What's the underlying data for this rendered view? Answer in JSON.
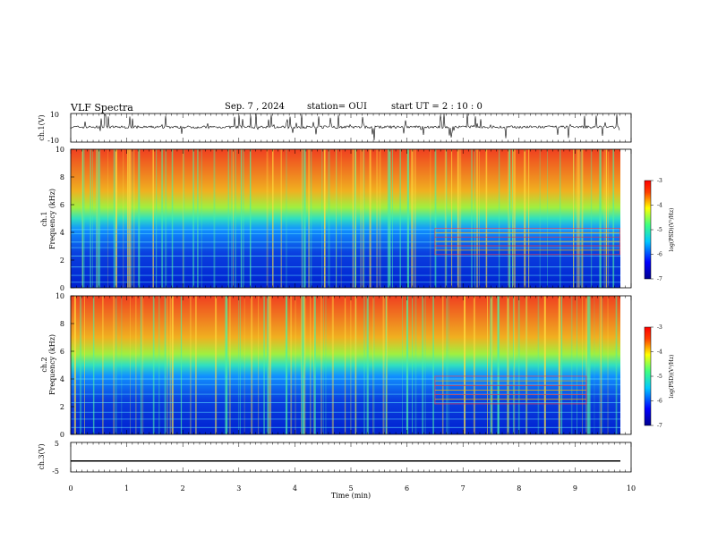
{
  "header": {
    "title": "VLF Spectra",
    "date": "Sep. 7 , 2024",
    "station": "station= OUI",
    "start_ut": "start  UT  =   2 : 10 : 0"
  },
  "chart_data": [
    {
      "type": "line",
      "name": "ch1-waveform",
      "ylabel": "ch.1(V)",
      "ylim": [
        -10,
        10
      ],
      "yticks": [
        "10",
        "-10"
      ],
      "baseline": 0.5,
      "note_values": "dense noisy waveform with frequent impulsive spikes reaching +10"
    },
    {
      "type": "heatmap",
      "name": "ch1-spectrogram",
      "ylabel": "ch.1\nFrequency  (kHz)",
      "ylim": [
        0,
        10
      ],
      "yticks": [
        "0",
        "2",
        "4",
        "6",
        "8",
        "10"
      ],
      "xlim": [
        0,
        10
      ],
      "band_edge_khz": 4.6,
      "lines_khz": [
        0.4,
        0.9,
        1.5,
        2.3,
        2.9,
        3.3,
        3.9,
        4.2
      ],
      "box": {
        "t0": 6.5,
        "t1": 9.8,
        "f0": 2.4,
        "f1": 4.3
      },
      "colorbar": {
        "label": "log(PSD)(V²/Hz)",
        "ticks": [
          "-3",
          "-4",
          "-5",
          "-6",
          "-7"
        ]
      }
    },
    {
      "type": "heatmap",
      "name": "ch2-spectrogram",
      "ylabel": "ch.2\nFrequency  (kHz)",
      "ylim": [
        0,
        10
      ],
      "yticks": [
        "0",
        "2",
        "4",
        "6",
        "8",
        "10"
      ],
      "xlim": [
        0,
        10
      ],
      "band_edge_khz": 4.3,
      "lines_khz": [
        0.5,
        1.1,
        1.6,
        2.3,
        2.9,
        3.6,
        4.0
      ],
      "box": {
        "t0": 6.5,
        "t1": 9.2,
        "f0": 2.2,
        "f1": 4.2
      },
      "colorbar": {
        "label": "log(PSD)(V²/Hz)",
        "ticks": [
          "-3",
          "-4",
          "-5",
          "-6",
          "-7"
        ]
      }
    },
    {
      "type": "line",
      "name": "ch3-waveform",
      "ylabel": "ch.3(V)",
      "ylim": [
        -5,
        5
      ],
      "yticks": [
        "5",
        "-5"
      ],
      "values_constant": -1.5,
      "xlabel": "Time  (min)",
      "xlim": [
        0,
        10
      ],
      "xticks": [
        "0",
        "1",
        "2",
        "3",
        "4",
        "5",
        "6",
        "7",
        "8",
        "9",
        "10"
      ]
    }
  ]
}
